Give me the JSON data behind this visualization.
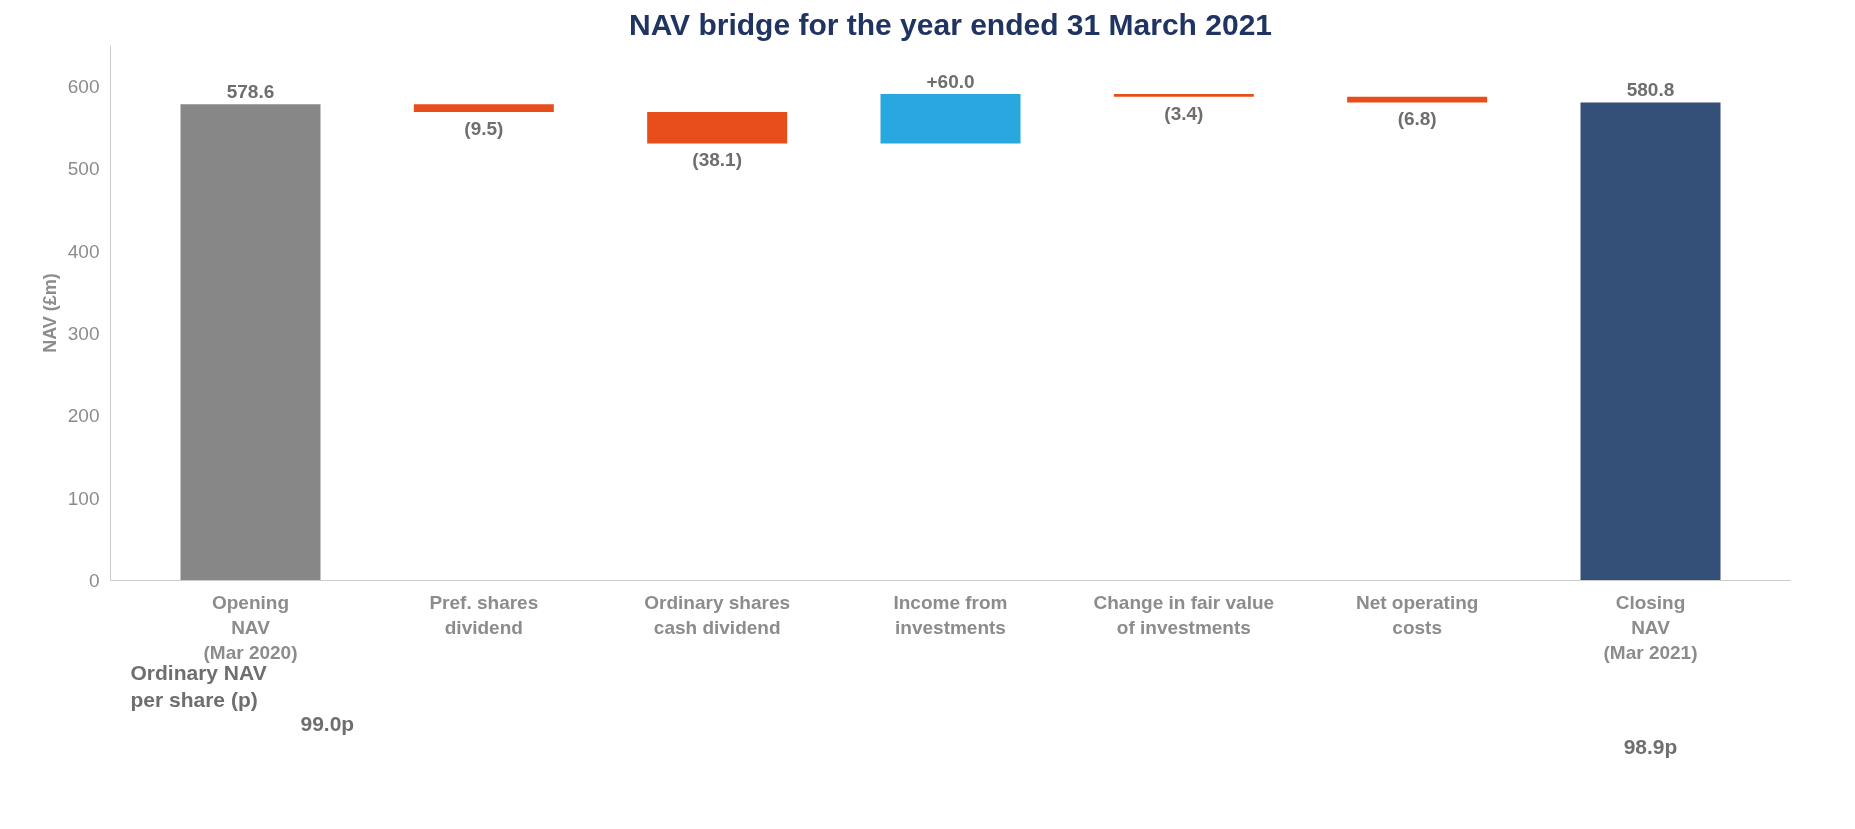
{
  "chart_data": {
    "type": "bar",
    "title": "NAV bridge for the year ended 31 March 2021",
    "ylabel": "NAV (£m)",
    "categories": [
      "Opening\nNAV\n(Mar 2020)",
      "Pref. shares\ndividend",
      "Ordinary shares\ncash dividend",
      "Income from\ninvestments",
      "Change in fair value\nof investments",
      "Net operating\ncosts",
      "Closing\nNAV\n(Mar 2021)"
    ],
    "values": [
      578.6,
      -9.5,
      -38.1,
      60.0,
      -3.4,
      -6.8,
      580.8
    ],
    "base": [
      0,
      578.6,
      569.1,
      531.0,
      591.0,
      587.6,
      0
    ],
    "colors": [
      "#878787",
      "#e84e1b",
      "#e84e1b",
      "#29a8e0",
      "#e84e1b",
      "#e84e1b",
      "#344f78"
    ],
    "value_labels": [
      "578.6",
      "(9.5)",
      "(38.1)",
      "+60.0",
      "(3.4)",
      "(6.8)",
      "580.8"
    ],
    "ylim": [
      0,
      650
    ],
    "yticks": [
      0,
      100,
      200,
      300,
      400,
      500,
      600
    ],
    "grid": false,
    "annotations": [
      "Ordinary NAV\nper share (p)",
      "99.0p",
      "98.9p"
    ]
  }
}
